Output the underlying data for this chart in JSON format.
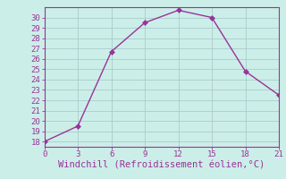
{
  "x": [
    0,
    3,
    6,
    9,
    12,
    15,
    18,
    21
  ],
  "y": [
    18,
    19.5,
    26.7,
    29.5,
    30.7,
    30.0,
    24.8,
    22.5
  ],
  "xlim": [
    0,
    21
  ],
  "ylim": [
    17.5,
    31
  ],
  "xticks": [
    0,
    3,
    6,
    9,
    12,
    15,
    18,
    21
  ],
  "yticks": [
    18,
    19,
    20,
    21,
    22,
    23,
    24,
    25,
    26,
    27,
    28,
    29,
    30
  ],
  "xlabel": "Windchill (Refroidissement éolien,°C)",
  "line_color": "#993399",
  "marker": "D",
  "marker_size": 3,
  "background_color": "#cceee8",
  "grid_color": "#aacccc",
  "spine_color": "#993399",
  "tick_label_fontsize": 6.5,
  "xlabel_fontsize": 7.5
}
